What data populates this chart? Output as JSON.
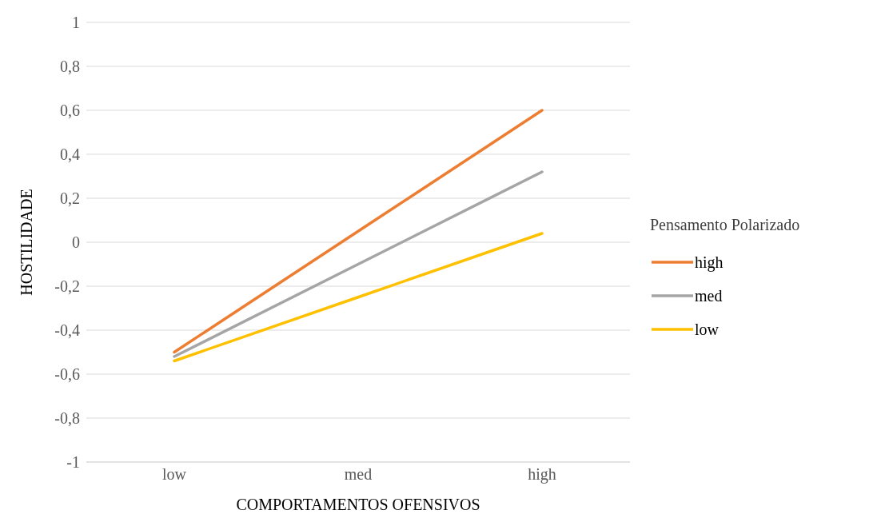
{
  "chart_data": {
    "type": "line",
    "xlabel": "COMPORTAMENTOS OFENSIVOS",
    "ylabel": "HOSTILIDADE",
    "legend_title": "Pensamento Polarizado",
    "categories": [
      "low",
      "med",
      "high"
    ],
    "series": [
      {
        "name": "high",
        "color": "#ed7d31",
        "values": [
          -0.5,
          0.05,
          0.6
        ]
      },
      {
        "name": "med",
        "color": "#a5a5a5",
        "values": [
          -0.52,
          -0.1,
          0.32
        ]
      },
      {
        "name": "low",
        "color": "#ffc000",
        "values": [
          -0.54,
          -0.25,
          0.04
        ]
      }
    ],
    "ylim": [
      -1,
      1
    ],
    "yticks": [
      {
        "value": -1,
        "label": "-1"
      },
      {
        "value": -0.8,
        "label": "-0,8"
      },
      {
        "value": -0.6,
        "label": "-0,6"
      },
      {
        "value": -0.4,
        "label": "-0,4"
      },
      {
        "value": -0.2,
        "label": "-0,2"
      },
      {
        "value": 0,
        "label": "0"
      },
      {
        "value": 0.2,
        "label": "0,2"
      },
      {
        "value": 0.4,
        "label": "0,4"
      },
      {
        "value": 0.6,
        "label": "0,6"
      },
      {
        "value": 0.8,
        "label": "0,8"
      },
      {
        "value": 1,
        "label": "1"
      }
    ],
    "grid": "y",
    "legend": "right",
    "marker": "none",
    "line_style": "solid"
  }
}
